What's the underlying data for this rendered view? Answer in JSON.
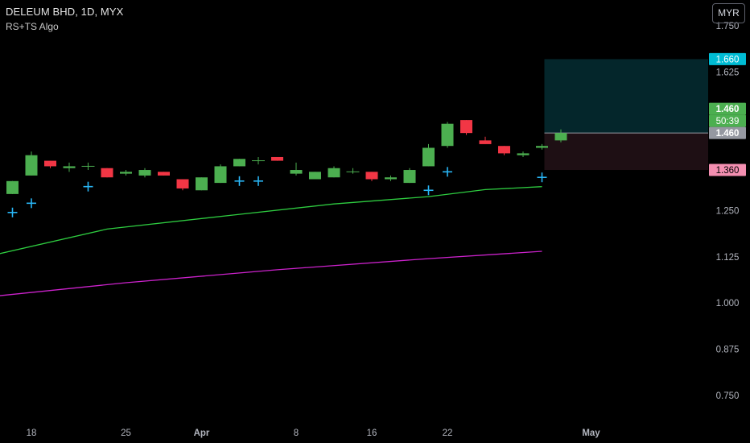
{
  "header": {
    "title": "DELEUM BHD, 1D, MYX",
    "indicator": "RS+TS Algo"
  },
  "currency_button": "MYR",
  "colors": {
    "background": "#000000",
    "up": "#4caf50",
    "down": "#f23645",
    "signal": "#29b6f6",
    "green_line": "#2ecc40",
    "magenta_line": "#cc22cc",
    "target_zone": "#04262b",
    "stop_zone": "#1e0f14",
    "label_target": "#00bcd4",
    "label_stop": "#f48fb1",
    "label_price": "#4caf50"
  },
  "chart_data": {
    "type": "candlestick",
    "symbol": "DELEUM BHD",
    "interval": "1D",
    "exchange": "MYX",
    "y_ticks": [
      "1.750",
      "1.625",
      "1.250",
      "1.125",
      "1.000",
      "0.875",
      "0.750"
    ],
    "x_ticks": [
      {
        "label": "18",
        "i": 1
      },
      {
        "label": "25",
        "i": 6
      },
      {
        "label": "Apr",
        "i": 10
      },
      {
        "label": "8",
        "i": 15
      },
      {
        "label": "16",
        "i": 19
      },
      {
        "label": "22",
        "i": 23
      },
      {
        "label": "May",
        "i": 30
      }
    ],
    "ylim": [
      0.68,
      1.82
    ],
    "candles": [
      {
        "o": 1.295,
        "h": 1.33,
        "l": 1.295,
        "c": 1.33
      },
      {
        "o": 1.345,
        "h": 1.41,
        "l": 1.345,
        "c": 1.4
      },
      {
        "o": 1.385,
        "h": 1.385,
        "l": 1.365,
        "c": 1.37
      },
      {
        "o": 1.365,
        "h": 1.38,
        "l": 1.355,
        "c": 1.37
      },
      {
        "o": 1.37,
        "h": 1.38,
        "l": 1.36,
        "c": 1.37
      },
      {
        "o": 1.365,
        "h": 1.365,
        "l": 1.34,
        "c": 1.34
      },
      {
        "o": 1.35,
        "h": 1.36,
        "l": 1.345,
        "c": 1.355
      },
      {
        "o": 1.345,
        "h": 1.365,
        "l": 1.34,
        "c": 1.36
      },
      {
        "o": 1.355,
        "h": 1.355,
        "l": 1.345,
        "c": 1.345
      },
      {
        "o": 1.335,
        "h": 1.335,
        "l": 1.305,
        "c": 1.31
      },
      {
        "o": 1.305,
        "h": 1.34,
        "l": 1.305,
        "c": 1.34
      },
      {
        "o": 1.325,
        "h": 1.375,
        "l": 1.325,
        "c": 1.37
      },
      {
        "o": 1.37,
        "h": 1.39,
        "l": 1.37,
        "c": 1.39
      },
      {
        "o": 1.385,
        "h": 1.395,
        "l": 1.375,
        "c": 1.385
      },
      {
        "o": 1.395,
        "h": 1.395,
        "l": 1.385,
        "c": 1.385
      },
      {
        "o": 1.35,
        "h": 1.38,
        "l": 1.345,
        "c": 1.36
      },
      {
        "o": 1.335,
        "h": 1.355,
        "l": 1.335,
        "c": 1.355
      },
      {
        "o": 1.34,
        "h": 1.37,
        "l": 1.34,
        "c": 1.365
      },
      {
        "o": 1.355,
        "h": 1.365,
        "l": 1.35,
        "c": 1.355
      },
      {
        "o": 1.355,
        "h": 1.355,
        "l": 1.33,
        "c": 1.335
      },
      {
        "o": 1.335,
        "h": 1.345,
        "l": 1.33,
        "c": 1.34
      },
      {
        "o": 1.325,
        "h": 1.365,
        "l": 1.325,
        "c": 1.36
      },
      {
        "o": 1.37,
        "h": 1.43,
        "l": 1.37,
        "c": 1.42
      },
      {
        "o": 1.425,
        "h": 1.49,
        "l": 1.42,
        "c": 1.485
      },
      {
        "o": 1.495,
        "h": 1.495,
        "l": 1.455,
        "c": 1.46
      },
      {
        "o": 1.44,
        "h": 1.45,
        "l": 1.43,
        "c": 1.43
      },
      {
        "o": 1.425,
        "h": 1.425,
        "l": 1.4,
        "c": 1.405
      },
      {
        "o": 1.4,
        "h": 1.41,
        "l": 1.395,
        "c": 1.405
      },
      {
        "o": 1.42,
        "h": 1.43,
        "l": 1.415,
        "c": 1.425
      },
      {
        "o": 1.44,
        "h": 1.47,
        "l": 1.435,
        "c": 1.46
      }
    ],
    "signals": [
      {
        "i": 0,
        "y": 1.245
      },
      {
        "i": 1,
        "y": 1.27
      },
      {
        "i": 4,
        "y": 1.315
      },
      {
        "i": 12,
        "y": 1.33
      },
      {
        "i": 13,
        "y": 1.33
      },
      {
        "i": 22,
        "y": 1.305
      },
      {
        "i": 23,
        "y": 1.355
      },
      {
        "i": 28,
        "y": 1.34
      }
    ],
    "series": [
      {
        "name": "",
        "color": "#2ecc40",
        "from": [
          -1,
          1.13
        ],
        "points": [
          [
            5,
            1.2
          ],
          [
            12,
            1.24
          ],
          [
            17,
            1.268
          ],
          [
            22,
            1.288
          ],
          [
            25,
            1.307
          ],
          [
            28,
            1.315
          ]
        ]
      },
      {
        "name": "",
        "color": "#cc22cc",
        "from": [
          -1,
          1.018
        ],
        "points": [
          [
            6,
            1.055
          ],
          [
            14,
            1.09
          ],
          [
            22,
            1.12
          ],
          [
            28,
            1.14
          ]
        ]
      }
    ],
    "position": {
      "entry": 1.46,
      "target": 1.66,
      "stop": 1.36,
      "start_i": 28
    },
    "price_labels": [
      {
        "text": "1.660",
        "value": 1.66,
        "kind": "target"
      },
      {
        "text": "1.460",
        "value": 1.46,
        "kind": "price"
      },
      {
        "text": "50:39",
        "value": 1.46,
        "kind": "countdown"
      },
      {
        "text": "1.460",
        "value": 1.46,
        "kind": "entry"
      },
      {
        "text": "1.360",
        "value": 1.36,
        "kind": "stop"
      }
    ]
  }
}
